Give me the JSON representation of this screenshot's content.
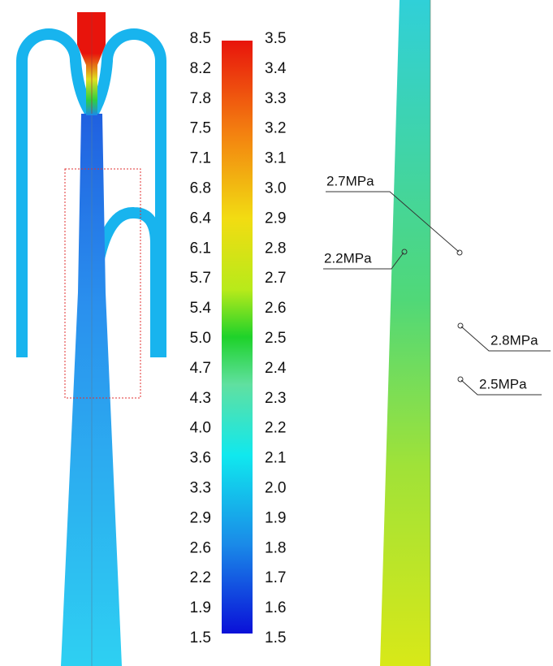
{
  "colorbar": {
    "left_labels": [
      "8.5",
      "8.2",
      "7.8",
      "7.5",
      "7.1",
      "6.8",
      "6.4",
      "6.1",
      "5.7",
      "5.4",
      "5.0",
      "4.7",
      "4.3",
      "4.0",
      "3.6",
      "3.3",
      "2.9",
      "2.6",
      "2.2",
      "1.9",
      "1.5"
    ],
    "right_labels": [
      "3.5",
      "3.4",
      "3.3",
      "3.2",
      "3.1",
      "3.0",
      "2.9",
      "2.8",
      "2.7",
      "2.6",
      "2.5",
      "2.4",
      "2.3",
      "2.2",
      "2.1",
      "2.0",
      "1.9",
      "1.8",
      "1.7",
      "1.6",
      "1.5"
    ]
  },
  "annotations": [
    "2.7MPa",
    "2.2MPa",
    "2.8MPa",
    "2.5MPa"
  ]
}
